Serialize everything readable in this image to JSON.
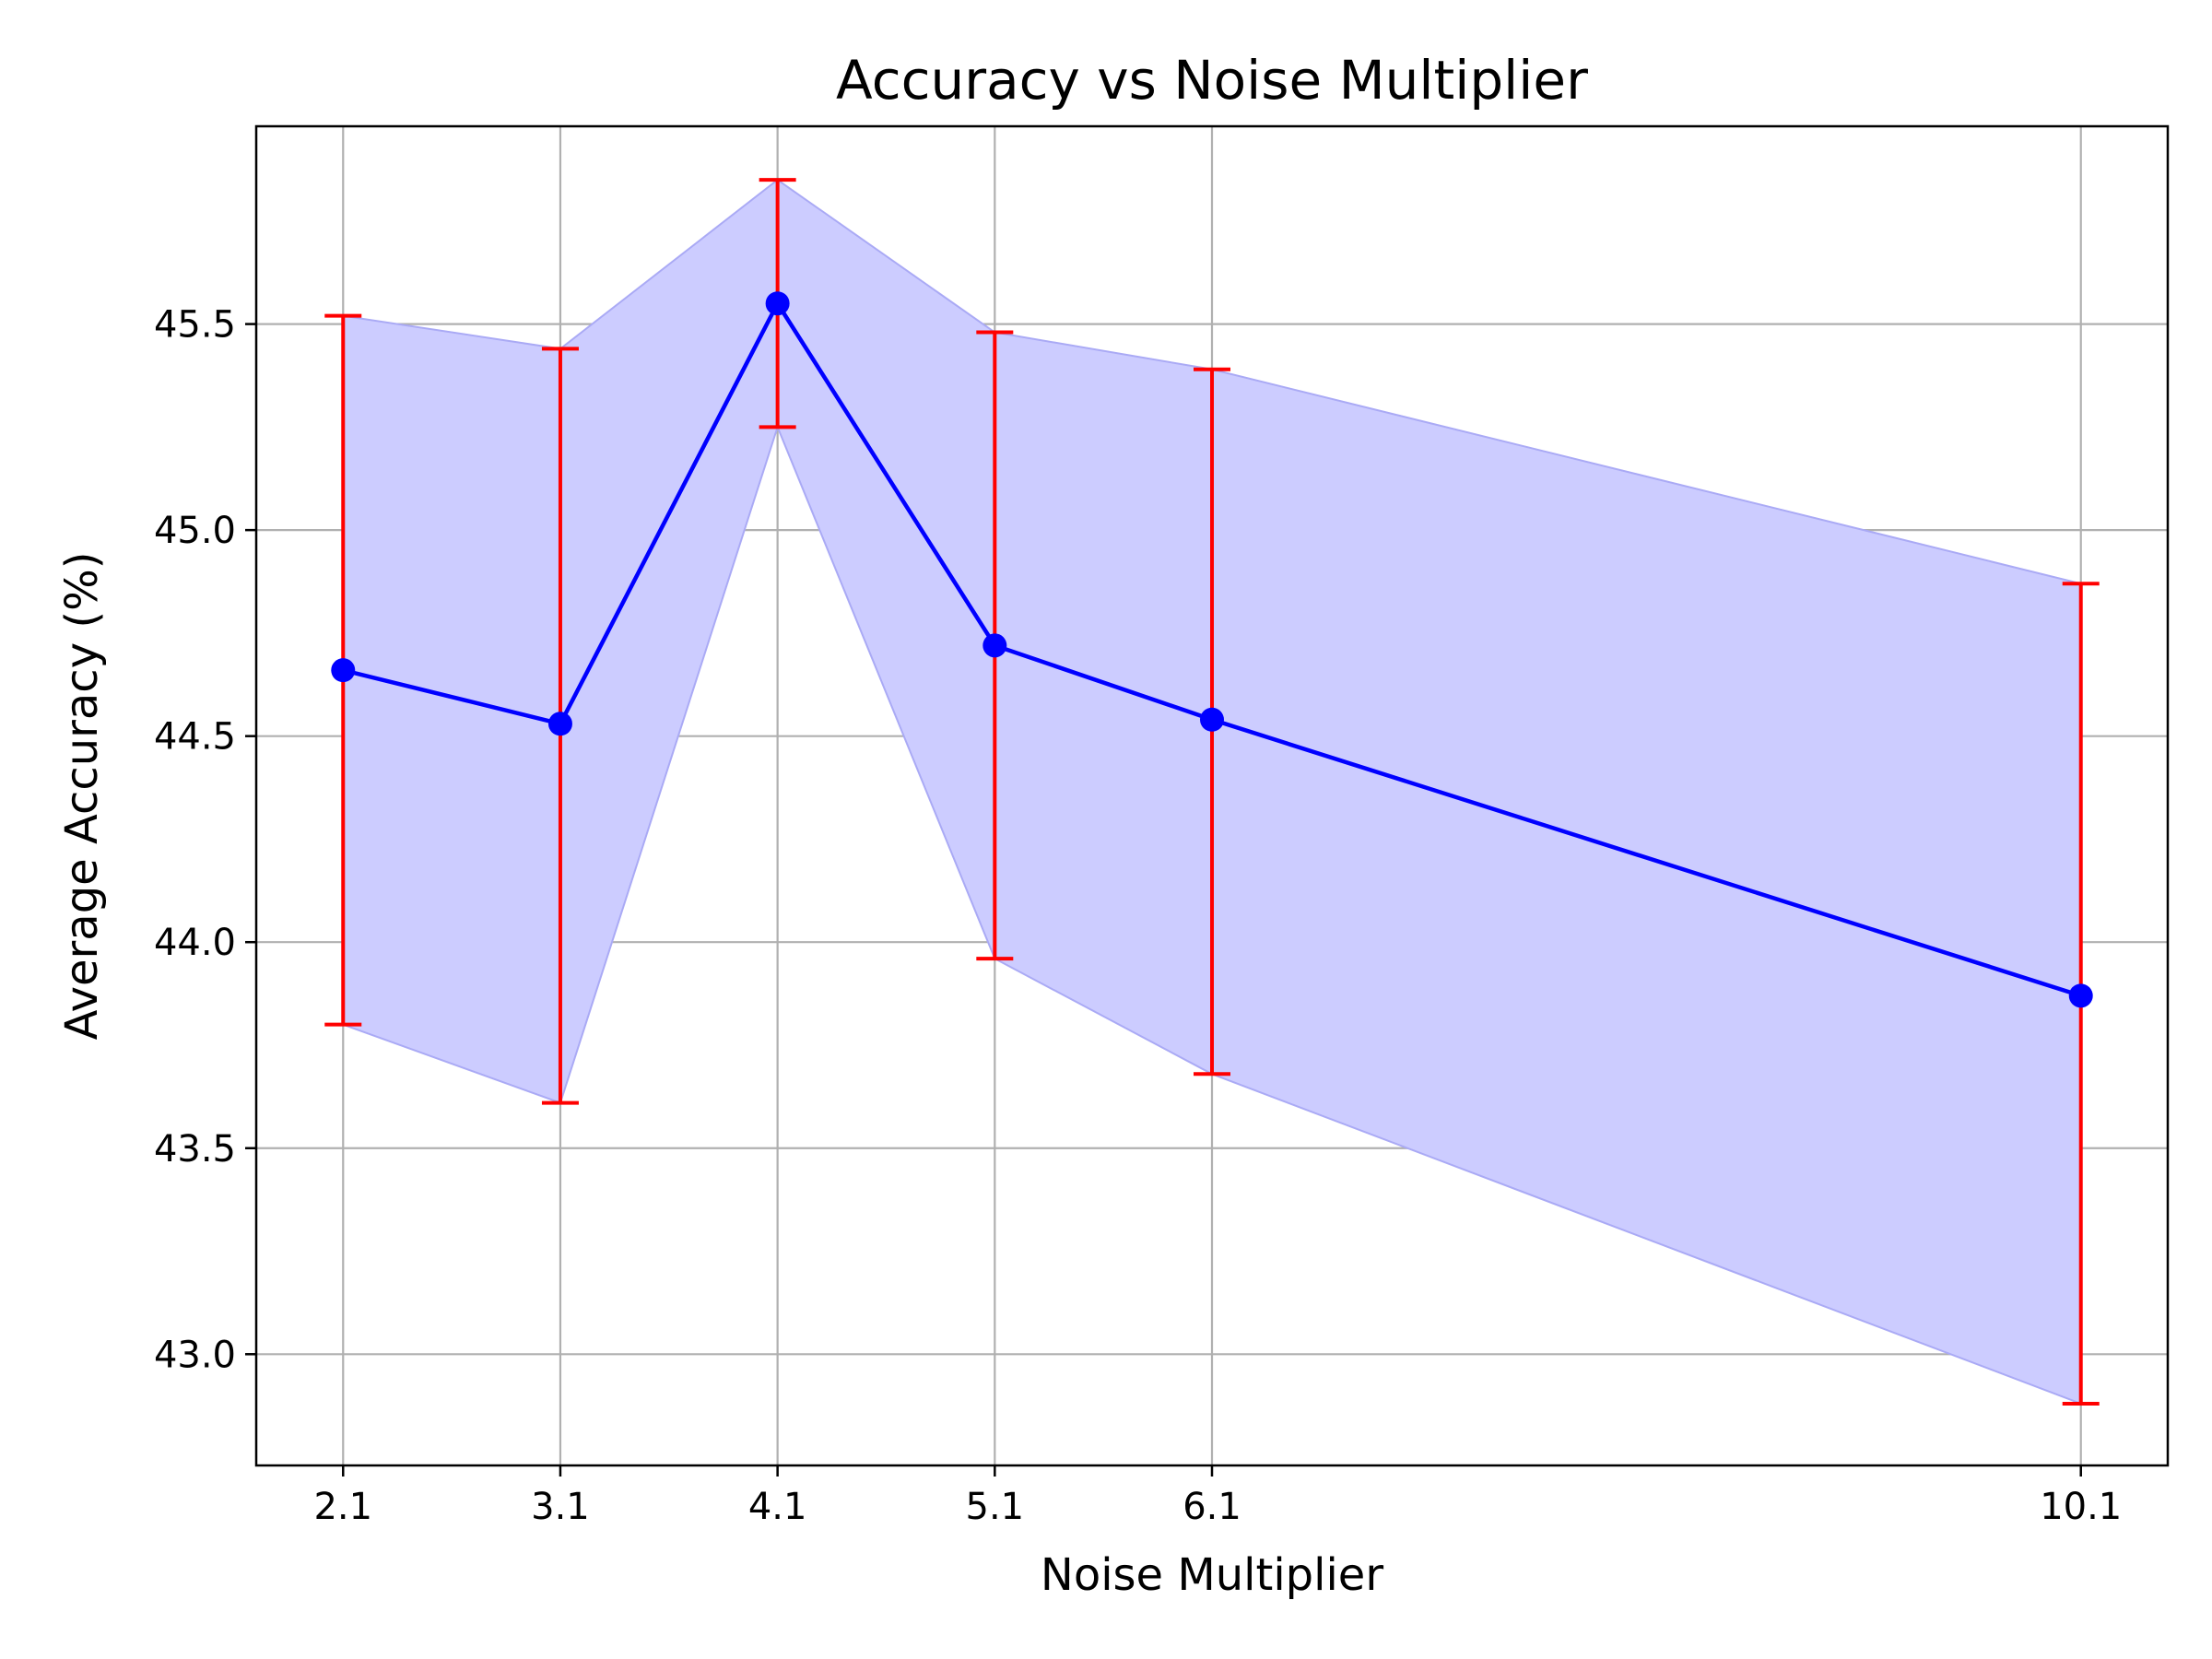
{
  "chart_data": {
    "type": "line",
    "title": "Accuracy vs Noise Multiplier",
    "xlabel": "Noise Multiplier",
    "ylabel": "Average Accuracy (%)",
    "x": [
      2.1,
      3.1,
      4.1,
      5.1,
      6.1,
      10.1
    ],
    "x_tick_labels": [
      "2.1",
      "3.1",
      "4.1",
      "5.1",
      "6.1",
      "10.1"
    ],
    "xlim": [
      1.7,
      10.5
    ],
    "ylim": [
      42.73,
      45.98
    ],
    "y_ticks": [
      43.0,
      43.5,
      44.0,
      44.5,
      45.0,
      45.5
    ],
    "y_tick_labels": [
      "43.0",
      "43.5",
      "44.0",
      "44.5",
      "45.0",
      "45.5"
    ],
    "grid": true,
    "series": [
      {
        "values": [
          44.66,
          44.53,
          45.55,
          44.72,
          44.54,
          43.87
        ],
        "error_upper": [
          45.52,
          45.44,
          45.85,
          45.48,
          45.39,
          44.87
        ],
        "error_lower": [
          43.8,
          43.61,
          45.25,
          43.96,
          43.68,
          42.88
        ]
      }
    ],
    "colors": {
      "line": "#0000ff",
      "marker": "#0000ff",
      "error_bar": "#ff0000",
      "band_fill": "#ccccff",
      "band_edge": "#aaaaf5",
      "grid": "#b0b0b0",
      "axes": "#000000"
    }
  }
}
